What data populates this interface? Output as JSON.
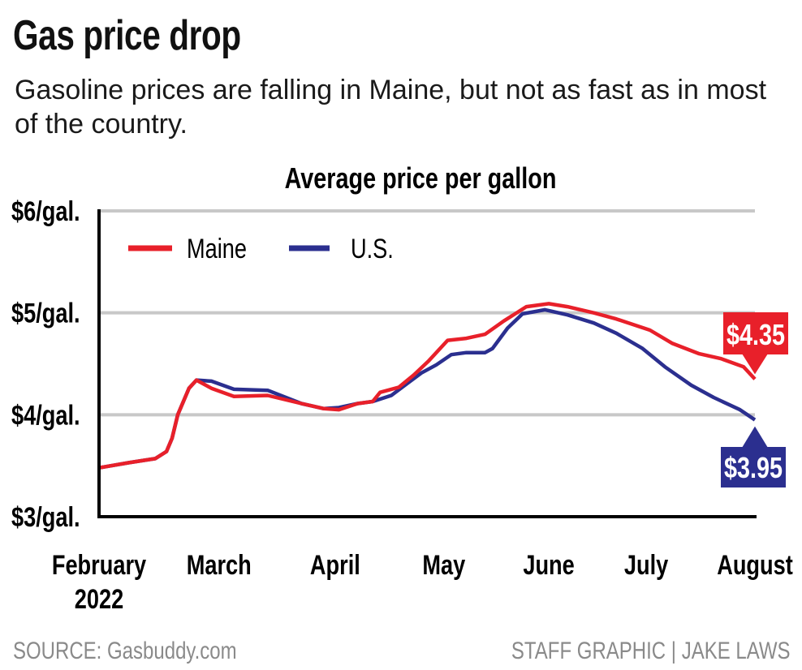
{
  "title": "Gas price drop",
  "subtitle": "Gasoline prices are falling in Maine, but not as fast as in most of the country.",
  "source": "SOURCE: Gasbuddy.com",
  "credit": "STAFF GRAPHIC | JAKE LAWS",
  "colors": {
    "maine": "#e8202a",
    "us": "#2b2f8f",
    "grid": "#c8c8c8"
  },
  "chart_data": {
    "type": "line",
    "title": "Average price per gallon",
    "xlabel": "",
    "ylabel": "",
    "x_unit": "days since late February 2022",
    "xlim": [
      0,
      175
    ],
    "ylim": [
      3,
      6
    ],
    "yticks": [
      {
        "value": 3,
        "label": "$3/gal."
      },
      {
        "value": 4,
        "label": "$4/gal."
      },
      {
        "value": 5,
        "label": "$5/gal."
      },
      {
        "value": 6,
        "label": "$6/gal."
      }
    ],
    "xticks": [
      {
        "value": 0,
        "label": "February",
        "sublabel": "2022"
      },
      {
        "value": 32,
        "label": "March"
      },
      {
        "value": 63,
        "label": "April"
      },
      {
        "value": 92,
        "label": "May"
      },
      {
        "value": 120,
        "label": "June"
      },
      {
        "value": 146,
        "label": "July"
      },
      {
        "value": 175,
        "label": "August"
      }
    ],
    "grid": true,
    "legend": "top-left",
    "series": [
      {
        "name": "Maine",
        "color": "#e8202a",
        "end_label": "$4.35",
        "x": [
          0,
          8,
          15,
          18,
          19.5,
          21,
          24,
          26,
          30,
          36,
          45,
          54,
          60,
          64,
          69,
          73,
          75,
          80,
          84,
          88,
          93,
          98,
          103,
          108,
          114,
          120,
          125,
          132,
          138,
          147,
          153,
          160,
          166,
          172,
          175
        ],
        "y": [
          3.48,
          3.53,
          3.57,
          3.64,
          3.77,
          4.0,
          4.26,
          4.34,
          4.26,
          4.18,
          4.19,
          4.11,
          4.06,
          4.05,
          4.11,
          4.13,
          4.22,
          4.27,
          4.39,
          4.53,
          4.73,
          4.75,
          4.79,
          4.92,
          5.06,
          5.09,
          5.06,
          5.0,
          4.94,
          4.83,
          4.7,
          4.6,
          4.55,
          4.47,
          4.35
        ]
      },
      {
        "name": "U.S.",
        "color": "#2b2f8f",
        "end_label": "$3.95",
        "x": [
          0,
          8,
          15,
          18,
          19.5,
          21,
          24,
          26,
          30,
          36,
          45,
          54,
          60,
          64,
          69,
          73,
          78,
          82,
          86,
          90,
          94,
          98,
          103,
          105,
          109,
          113,
          119,
          125,
          132,
          138,
          145,
          151,
          158,
          164,
          171,
          175
        ],
        "y": [
          3.48,
          3.53,
          3.57,
          3.64,
          3.77,
          4.0,
          4.26,
          4.34,
          4.33,
          4.25,
          4.24,
          4.11,
          4.06,
          4.07,
          4.11,
          4.13,
          4.19,
          4.3,
          4.41,
          4.49,
          4.59,
          4.61,
          4.61,
          4.65,
          4.85,
          4.99,
          5.03,
          4.98,
          4.9,
          4.8,
          4.65,
          4.47,
          4.29,
          4.17,
          4.05,
          3.95
        ]
      }
    ]
  }
}
